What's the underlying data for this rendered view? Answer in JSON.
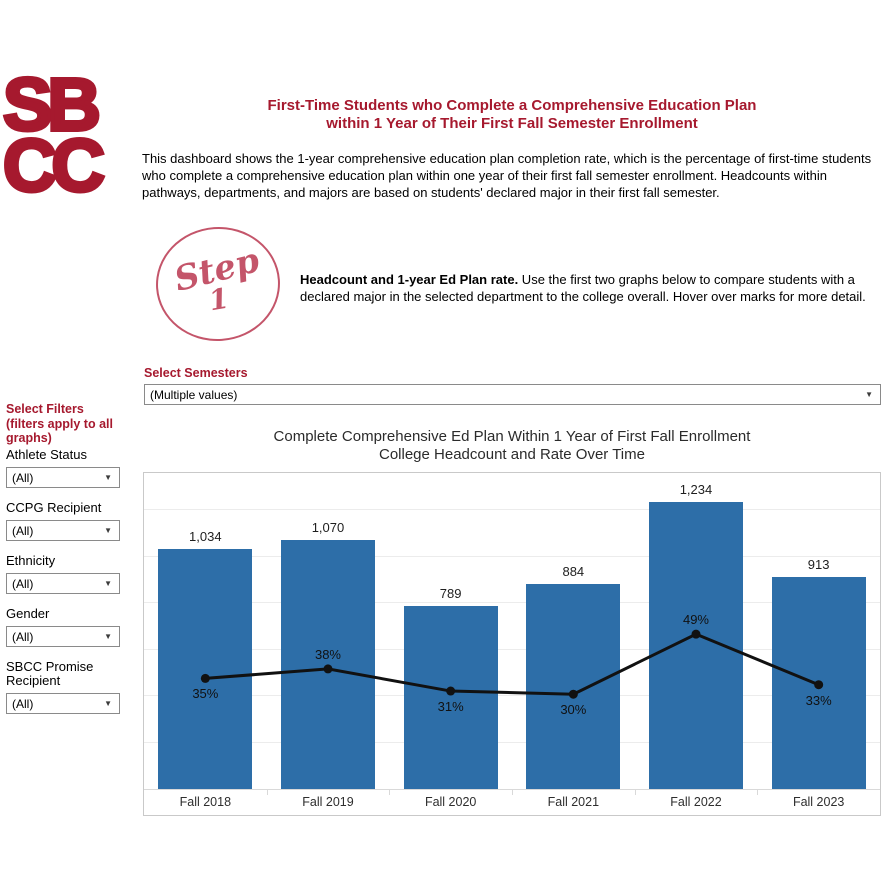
{
  "logo": {
    "line1": "SB",
    "line2": "CC"
  },
  "header": {
    "title_line1": "First-Time Students who Complete a Comprehensive Education Plan",
    "title_line2": "within 1 Year of Their First Fall Semester Enrollment",
    "description": "This dashboard shows the 1-year comprehensive education plan completion rate, which is the percentage of first-time students who complete a comprehensive education plan within one year of their first fall semester enrollment. Headcounts within pathways, departments, and majors are based on students' declared major in their first fall semester."
  },
  "step": {
    "badge_word": "Step",
    "badge_number": "1",
    "heading": "Headcount and 1-year Ed Plan rate.",
    "body": " Use the first two graphs below to compare students with a declared major in the selected department to the college overall. Hover over marks for more detail."
  },
  "semester_filter": {
    "label": "Select Semesters",
    "value": "(Multiple values)"
  },
  "sidebar": {
    "title_l1": "Select Filters",
    "title_l2": "(filters apply to all",
    "title_l3": "graphs)",
    "filters": [
      {
        "label": "Athlete Status",
        "value": "(All)"
      },
      {
        "label": "CCPG Recipient",
        "value": "(All)"
      },
      {
        "label": "Ethnicity",
        "value": "(All)"
      },
      {
        "label": "Gender",
        "value": "(All)"
      },
      {
        "label": "SBCC Promise Recipient",
        "value": "(All)"
      }
    ]
  },
  "chart_data": {
    "type": "bar",
    "title": "Complete Comprehensive Ed Plan Within 1 Year of First Fall Enrollment",
    "subtitle": "College Headcount and Rate Over Time",
    "categories": [
      "Fall 2018",
      "Fall 2019",
      "Fall 2020",
      "Fall 2021",
      "Fall 2022",
      "Fall 2023"
    ],
    "series": [
      {
        "name": "College Headcount",
        "mark": "bar",
        "values": [
          1034,
          1070,
          789,
          884,
          1234,
          913
        ],
        "labels": [
          "1,034",
          "1,070",
          "789",
          "884",
          "1,234",
          "913"
        ],
        "color": "#2D6EA8"
      },
      {
        "name": "1-Year Ed Plan Completion Rate",
        "mark": "line",
        "values": [
          35,
          38,
          31,
          30,
          49,
          33
        ],
        "labels": [
          "35%",
          "38%",
          "31%",
          "30%",
          "49%",
          "33%"
        ],
        "label_positions": [
          "below",
          "above",
          "below",
          "below",
          "above",
          "below"
        ],
        "axis_range": [
          0,
          100
        ],
        "color": "#111111"
      }
    ],
    "xlabel": "",
    "ylabel": "",
    "ylim": [
      0,
      1360
    ],
    "grid_step": 200,
    "grid": true,
    "legend_position": "none"
  },
  "colors": {
    "brand_red": "#A6192E",
    "bar_blue": "#2D6EA8",
    "stamp_rose": "#C4556A",
    "line_black": "#111111"
  }
}
